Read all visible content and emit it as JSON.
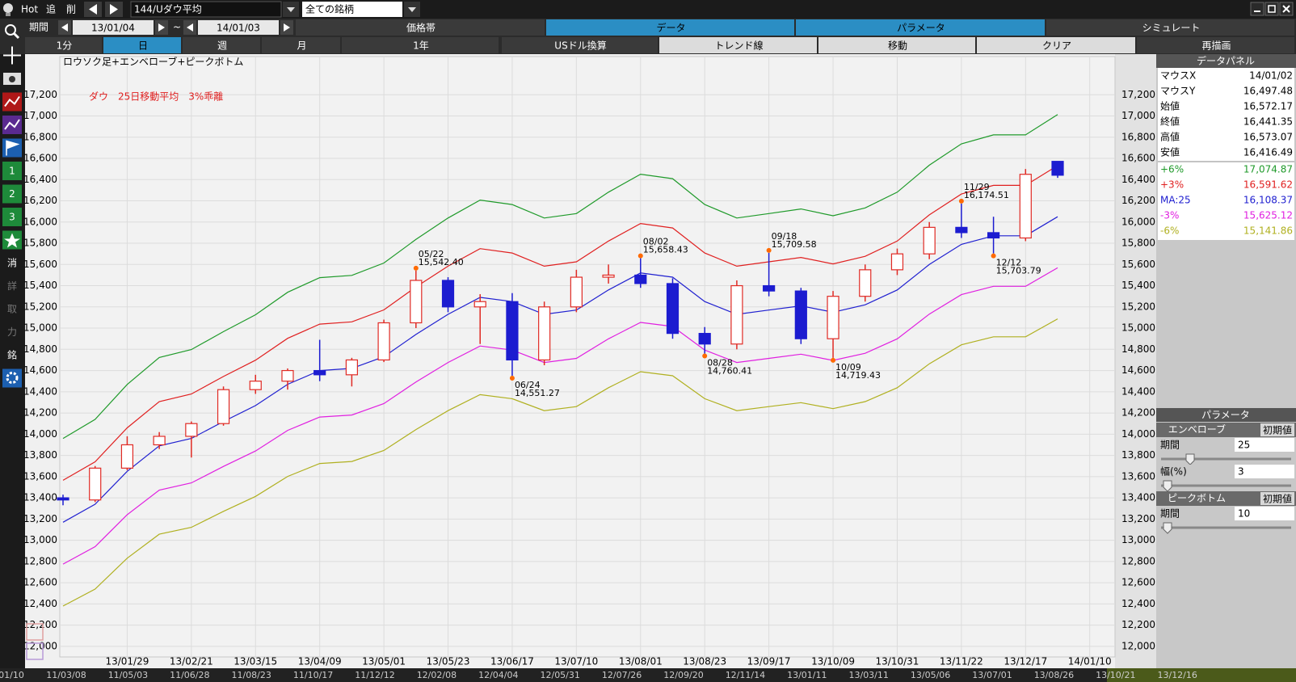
{
  "chart_data": {
    "type": "candlestick",
    "title": "ダウ　25日移動平均　3%乖離",
    "subtitle": "ロウソク足+エンベローブ+ピークボトム",
    "categories": [
      null,
      null,
      "13/01/29",
      null,
      "13/02/21",
      null,
      "13/03/15",
      null,
      "13/04/09",
      null,
      "13/05/01",
      null,
      "13/05/23",
      null,
      "13/06/17",
      null,
      "13/07/10",
      null,
      "13/08/01",
      null,
      "13/08/23",
      null,
      "13/09/17",
      null,
      "13/10/09",
      null,
      "13/10/31",
      null,
      "13/11/22",
      null,
      "13/12/17",
      null,
      "14/01/10"
    ],
    "open": [
      13400,
      13380,
      13680,
      13900,
      13980,
      14100,
      14420,
      14500,
      14600,
      14560,
      14700,
      15050,
      15450,
      15200,
      15250,
      14700,
      15200,
      15480,
      15500,
      15420,
      14950,
      14850,
      15400,
      15350,
      14900,
      15300,
      15550,
      15700,
      15950,
      15900,
      15850,
      16572.17,
      null
    ],
    "high": [
      13430,
      13700,
      13980,
      14020,
      14120,
      14450,
      14560,
      14620,
      14890,
      14720,
      15080,
      15542.4,
      15480,
      15320,
      15330,
      15250,
      15550,
      15600,
      15658.43,
      15470,
      15010,
      15450,
      15709.58,
      15380,
      15350,
      15600,
      15750,
      16000,
      16174.51,
      16050,
      16500,
      16573.07,
      null
    ],
    "low": [
      13330,
      13360,
      13660,
      13860,
      13780,
      14080,
      14380,
      14420,
      14500,
      14450,
      14680,
      15000,
      15150,
      14850,
      14551.27,
      14650,
      15150,
      15420,
      15380,
      14900,
      14760.41,
      14800,
      15300,
      14850,
      14719.43,
      15250,
      15500,
      15650,
      15850,
      15703.79,
      15820,
      16416.49,
      null
    ],
    "close": [
      13380,
      13680,
      13900,
      13980,
      14100,
      14420,
      14500,
      14600,
      14560,
      14700,
      15050,
      15450,
      15200,
      15250,
      14700,
      15200,
      15480,
      15500,
      15420,
      14950,
      14850,
      15400,
      15350,
      14900,
      15300,
      15550,
      15700,
      15950,
      15900,
      15850,
      16450,
      16441.35,
      null
    ],
    "up_color": "#e02a24",
    "down_color": "#1c1cd0",
    "marker_color": "#ff6a00",
    "series": [
      {
        "name": "+6%",
        "color": "#1f9a2a",
        "values": [
          13960,
          14140,
          14469,
          14723,
          14798,
          14967,
          15126,
          15338,
          15476,
          15497,
          15614,
          15836,
          16038,
          16207,
          16165,
          16038,
          16080,
          16282,
          16451,
          16409,
          16165,
          16038,
          16080,
          16123,
          16059,
          16133,
          16282,
          16536,
          16737,
          16822,
          16822,
          17013,
          null
        ]
      },
      {
        "name": "+3%",
        "color": "#e02020",
        "values": [
          13565,
          13740,
          14060,
          14307,
          14379,
          14544,
          14698,
          14904,
          15038,
          15059,
          15172,
          15388,
          15584,
          15749,
          15708,
          15584,
          15625,
          15821,
          15986,
          15944,
          15708,
          15584,
          15625,
          15666,
          15605,
          15677,
          15821,
          16068,
          16264,
          16346,
          16346,
          16532,
          null
        ]
      },
      {
        "name": "MA:25",
        "color": "#2020d0",
        "values": [
          13170,
          13340,
          13650,
          13890,
          13960,
          14120,
          14270,
          14470,
          14600,
          14620,
          14730,
          14940,
          15130,
          15290,
          15250,
          15130,
          15170,
          15360,
          15520,
          15480,
          15250,
          15130,
          15170,
          15210,
          15150,
          15220,
          15360,
          15600,
          15790,
          15870,
          15870,
          16050,
          null
        ]
      },
      {
        "name": "-3%",
        "color": "#e020e0",
        "values": [
          12775,
          12940,
          13241,
          13473,
          13541,
          13696,
          13842,
          14036,
          14162,
          14181,
          14288,
          14492,
          14676,
          14831,
          14793,
          14676,
          14715,
          14899,
          15054,
          15016,
          14793,
          14676,
          14715,
          14754,
          14696,
          14763,
          14899,
          15132,
          15316,
          15394,
          15394,
          15569,
          null
        ]
      },
      {
        "name": "-6%",
        "color": "#b0b020",
        "values": [
          12380,
          12540,
          12831,
          13057,
          13122,
          13273,
          13414,
          13602,
          13724,
          13743,
          13846,
          14044,
          14222,
          14373,
          14335,
          14222,
          14260,
          14438,
          14589,
          14551,
          14335,
          14222,
          14260,
          14297,
          14241,
          14307,
          14438,
          14664,
          14843,
          14918,
          14918,
          15087,
          null
        ]
      }
    ],
    "ylim": [
      11900,
      17560
    ],
    "yticks": [
      {
        "value": 12000,
        "label": "12,000"
      },
      {
        "value": 12200,
        "label": "12,200"
      },
      {
        "value": 12400,
        "label": "12,400"
      },
      {
        "value": 12600,
        "label": "12,600"
      },
      {
        "value": 12800,
        "label": "12,800"
      },
      {
        "value": 13000,
        "label": "13,000"
      },
      {
        "value": 13200,
        "label": "13,200"
      },
      {
        "value": 13400,
        "label": "13,400"
      },
      {
        "value": 13600,
        "label": "13,600"
      },
      {
        "value": 13800,
        "label": "13,800"
      },
      {
        "value": 14000,
        "label": "14,000"
      },
      {
        "value": 14200,
        "label": "14,200"
      },
      {
        "value": 14400,
        "label": "14,400"
      },
      {
        "value": 14600,
        "label": "14,600"
      },
      {
        "value": 14800,
        "label": "14,800"
      },
      {
        "value": 15000,
        "label": "15,000"
      },
      {
        "value": 15200,
        "label": "15,200"
      },
      {
        "value": 15400,
        "label": "15,400"
      },
      {
        "value": 15600,
        "label": "15,600"
      },
      {
        "value": 15800,
        "label": "15,800"
      },
      {
        "value": 16000,
        "label": "16,000"
      },
      {
        "value": 16200,
        "label": "16,200"
      },
      {
        "value": 16400,
        "label": "16,400"
      },
      {
        "value": 16600,
        "label": "16,600"
      },
      {
        "value": 16800,
        "label": "16,800"
      },
      {
        "value": 17000,
        "label": "17,000"
      },
      {
        "value": 17200,
        "label": "17,200"
      }
    ],
    "grid": true,
    "annotations": [
      {
        "date": "05/22",
        "value": 15542.4,
        "value_label": "15,542.40"
      },
      {
        "date": "06/24",
        "value": 14551.27,
        "value_label": "14,551.27"
      },
      {
        "date": "08/02",
        "value": 15658.43,
        "value_label": "15,658.43"
      },
      {
        "date": "08/28",
        "value": 14760.41,
        "value_label": "14,760.41"
      },
      {
        "date": "09/18",
        "value": 15709.58,
        "value_label": "15,709.58"
      },
      {
        "date": "10/09",
        "value": 14719.43,
        "value_label": "14,719.43"
      },
      {
        "date": "11/29",
        "value": 16174.51,
        "value_label": "16,174.51"
      },
      {
        "date": "12/12",
        "value": 15703.79,
        "value_label": "15,703.79"
      }
    ]
  },
  "ui": {
    "toolbar": {
      "hot": "Hot",
      "add": "追",
      "del": "削",
      "symbol": "144/Uダウ平均",
      "filter": "全ての銘柄"
    },
    "period": {
      "label": "期間",
      "from": "13/01/04",
      "sep": "~",
      "to": "14/01/03"
    },
    "tabs": [
      "価格帯",
      "データ",
      "パラメータ",
      "シミュレート"
    ],
    "intervals": [
      "1分",
      "日",
      "週",
      "月",
      "1年"
    ],
    "actions": [
      "USドル換算",
      "トレンド線",
      "移動",
      "クリア",
      "再描画"
    ],
    "side_labels": [
      "1",
      "2",
      "3",
      "消",
      "詳",
      "取",
      "力",
      "銘"
    ],
    "data_panel": {
      "title": "データパネル",
      "rows": [
        [
          "マウスX",
          "14/01/02"
        ],
        [
          "マウスY",
          "16,497.48"
        ],
        [
          "始値",
          "16,572.17"
        ],
        [
          "終値",
          "16,441.35"
        ],
        [
          "高値",
          "16,573.07"
        ],
        [
          "安値",
          "16,416.49"
        ]
      ],
      "envelope_values": [
        "17,074.87",
        "16,591.62",
        "16,108.37",
        "15,625.12",
        "15,141.86"
      ]
    },
    "parameters": {
      "title": "パラメータ",
      "sections": [
        {
          "name": "エンベローブ",
          "reset": "初期値",
          "fields": [
            [
              "期間",
              "25"
            ],
            [
              "幅(%)",
              "3"
            ]
          ]
        },
        {
          "name": "ピークボトム",
          "reset": "初期値",
          "fields": [
            [
              "期間",
              "10"
            ]
          ]
        }
      ]
    },
    "timeline": [
      "01/10",
      "11/03/08",
      "11/05/03",
      "11/06/28",
      "11/08/23",
      "11/10/17",
      "11/12/12",
      "12/02/08",
      "12/04/04",
      "12/05/31",
      "12/07/26",
      "12/09/20",
      "12/11/14",
      "13/01/11",
      "13/03/11",
      "13/05/06",
      "13/07/01",
      "13/08/26",
      "13/10/21",
      "13/12/16"
    ]
  }
}
